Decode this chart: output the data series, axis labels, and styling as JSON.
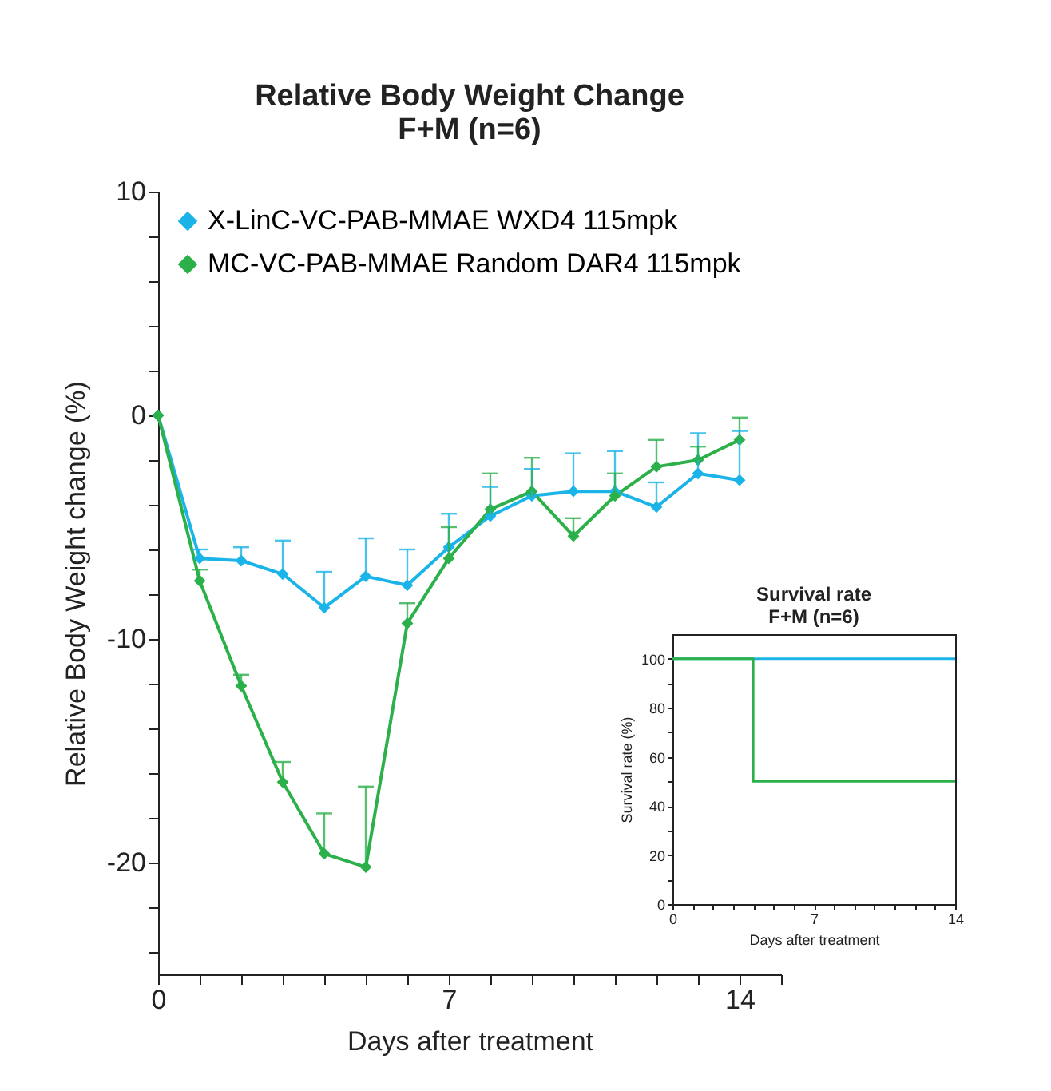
{
  "chart_data": [
    {
      "type": "line",
      "title": "Relative Body Weight Change",
      "subtitle": "F+M (n=6)",
      "xlabel": "Days after treatment",
      "ylabel": "Relative Body Weight change (%)",
      "x": [
        0,
        1,
        2,
        3,
        4,
        5,
        6,
        7,
        8,
        9,
        10,
        11,
        12,
        13,
        14
      ],
      "series": [
        {
          "name": "X-LinC-VC-PAB-MMAE WXD4 115mpk",
          "color": "#1ab4e8",
          "values": [
            0,
            -6.4,
            -6.5,
            -7.1,
            -8.6,
            -7.2,
            -7.6,
            -5.9,
            -4.5,
            -3.6,
            -3.4,
            -3.4,
            -4.1,
            -2.6,
            -2.9
          ],
          "errors": [
            null,
            [
              -6.4,
              -6.0
            ],
            [
              -6.5,
              -5.9
            ],
            [
              -7.1,
              -5.6
            ],
            [
              -8.6,
              -7.0
            ],
            [
              -7.2,
              -5.5
            ],
            [
              -7.6,
              -6.0
            ],
            [
              -5.9,
              -4.4
            ],
            [
              -4.5,
              -3.2
            ],
            [
              -3.6,
              -2.4
            ],
            [
              -3.4,
              -1.7
            ],
            [
              -3.4,
              -1.6
            ],
            [
              -4.1,
              -3.0
            ],
            [
              -2.6,
              -0.8
            ],
            [
              -2.9,
              -0.7
            ]
          ]
        },
        {
          "name": "MC-VC-PAB-MMAE Random DAR4 115mpk",
          "color": "#2bb04a",
          "values": [
            0,
            -7.4,
            -12.1,
            -16.4,
            -19.6,
            -20.2,
            -9.3,
            -6.4,
            -4.2,
            -3.4,
            -5.4,
            -3.6,
            -2.3,
            -2.0,
            -1.1
          ],
          "errors": [
            null,
            [
              -7.4,
              -6.9
            ],
            [
              -12.1,
              -11.6
            ],
            [
              -16.4,
              -15.5
            ],
            [
              -19.6,
              -17.8
            ],
            [
              -20.2,
              -16.6
            ],
            [
              -9.3,
              -8.4
            ],
            [
              -6.4,
              -5.0
            ],
            [
              -4.2,
              -2.6
            ],
            [
              -3.4,
              -1.9
            ],
            [
              -5.4,
              -4.6
            ],
            [
              -3.6,
              -2.6
            ],
            [
              -2.3,
              -1.1
            ],
            [
              -2.0,
              -1.4
            ],
            [
              -1.1,
              -0.1
            ]
          ]
        }
      ],
      "marker": "diamond",
      "legend": "top left",
      "xlim": [
        0,
        15
      ],
      "xticks": [
        0,
        {
          "value": 1,
          "label": null
        },
        {
          "value": 2,
          "label": null
        },
        {
          "value": 3,
          "label": null
        },
        {
          "value": 4,
          "label": null
        },
        {
          "value": 5,
          "label": null
        },
        {
          "value": 6,
          "label": null
        },
        7,
        {
          "value": 8,
          "label": null
        },
        {
          "value": 9,
          "label": null
        },
        {
          "value": 10,
          "label": null
        },
        {
          "value": 11,
          "label": null
        },
        {
          "value": 12,
          "label": null
        },
        {
          "value": 13,
          "label": null
        },
        14,
        {
          "value": 15,
          "label": null
        }
      ],
      "ylim": [
        -25,
        10
      ],
      "yticks": [
        10,
        {
          "value": 8,
          "label": null
        },
        {
          "value": 6,
          "label": null
        },
        {
          "value": 4,
          "label": null
        },
        {
          "value": 2,
          "label": null
        },
        0,
        {
          "value": -2,
          "label": null
        },
        {
          "value": -4,
          "label": null
        },
        {
          "value": -6,
          "label": null
        },
        {
          "value": -8,
          "label": null
        },
        -10,
        {
          "value": -12,
          "label": null
        },
        {
          "value": -14,
          "label": null
        },
        {
          "value": -16,
          "label": null
        },
        {
          "value": -18,
          "label": null
        },
        -20,
        {
          "value": -22,
          "label": null
        },
        {
          "value": -24,
          "label": null
        }
      ]
    },
    {
      "type": "step",
      "title": "Survival rate",
      "subtitle": "F+M (n=6)",
      "xlabel": "Days after treatment",
      "ylabel": "Survival rate (%)",
      "series": [
        {
          "color": "#1ab4e8",
          "x": [
            0,
            14
          ],
          "values": [
            100,
            100
          ]
        },
        {
          "color": "#2bb04a",
          "x": [
            0,
            4,
            14
          ],
          "values": [
            100,
            50,
            50
          ]
        }
      ],
      "xlim": [
        0,
        14
      ],
      "xticks": [
        0,
        {
          "value": 1,
          "label": null
        },
        {
          "value": 2,
          "label": null
        },
        {
          "value": 3,
          "label": null
        },
        {
          "value": 4,
          "label": null
        },
        {
          "value": 5,
          "label": null
        },
        {
          "value": 6,
          "label": null
        },
        7,
        {
          "value": 8,
          "label": null
        },
        {
          "value": 9,
          "label": null
        },
        {
          "value": 10,
          "label": null
        },
        {
          "value": 11,
          "label": null
        },
        {
          "value": 12,
          "label": null
        },
        {
          "value": 13,
          "label": null
        },
        14
      ],
      "ylim": [
        0,
        110
      ],
      "yticks": [
        0,
        {
          "value": 10,
          "label": null
        },
        20,
        {
          "value": 30,
          "label": null
        },
        40,
        {
          "value": 50,
          "label": null
        },
        60,
        {
          "value": 70,
          "label": null
        },
        80,
        {
          "value": 90,
          "label": null
        },
        100
      ]
    }
  ]
}
